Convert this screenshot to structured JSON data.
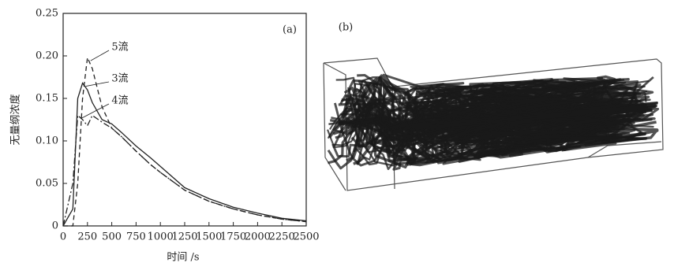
{
  "chart_data": {
    "type": "line",
    "annotations": [
      "(a)"
    ],
    "xlabel": "时间 /s",
    "ylabel": "无量纲浓度",
    "x": [
      0,
      100,
      150,
      200,
      250,
      300,
      400,
      500,
      600,
      750,
      900,
      1000,
      1250,
      1500,
      1750,
      2000,
      2250,
      2500
    ],
    "series": [
      {
        "name": "5流",
        "color": "#222222",
        "dash": "6,4",
        "values": [
          0,
          0,
          0.05,
          0.15,
          0.198,
          0.185,
          0.14,
          0.115,
          0.105,
          0.088,
          0.072,
          0.063,
          0.042,
          0.029,
          0.02,
          0.013,
          0.008,
          0.005
        ]
      },
      {
        "name": "3流",
        "color": "#222222",
        "dash": "none",
        "values": [
          0,
          0.02,
          0.15,
          0.168,
          0.16,
          0.145,
          0.125,
          0.12,
          0.11,
          0.094,
          0.08,
          0.07,
          0.045,
          0.032,
          0.022,
          0.015,
          0.009,
          0.006
        ]
      },
      {
        "name": "4流",
        "color": "#222222",
        "dash": "8,3,2,3",
        "values": [
          0,
          0.05,
          0.13,
          0.125,
          0.118,
          0.13,
          0.122,
          0.115,
          0.105,
          0.088,
          0.072,
          0.063,
          0.042,
          0.029,
          0.02,
          0.013,
          0.008,
          0.005
        ]
      }
    ],
    "xlim": [
      0,
      2500
    ],
    "xticks": [
      0,
      250,
      500,
      750,
      1000,
      1250,
      1500,
      1750,
      2000,
      2250,
      2500
    ],
    "ylim": [
      0,
      0.25
    ],
    "yticks": [
      0,
      0.05,
      {
        "value": 0.1,
        "label": "0.10"
      },
      0.15,
      {
        "value": 0.2,
        "label": "0.20"
      },
      0.25
    ]
  },
  "panel_b": {
    "label": "(b)"
  }
}
